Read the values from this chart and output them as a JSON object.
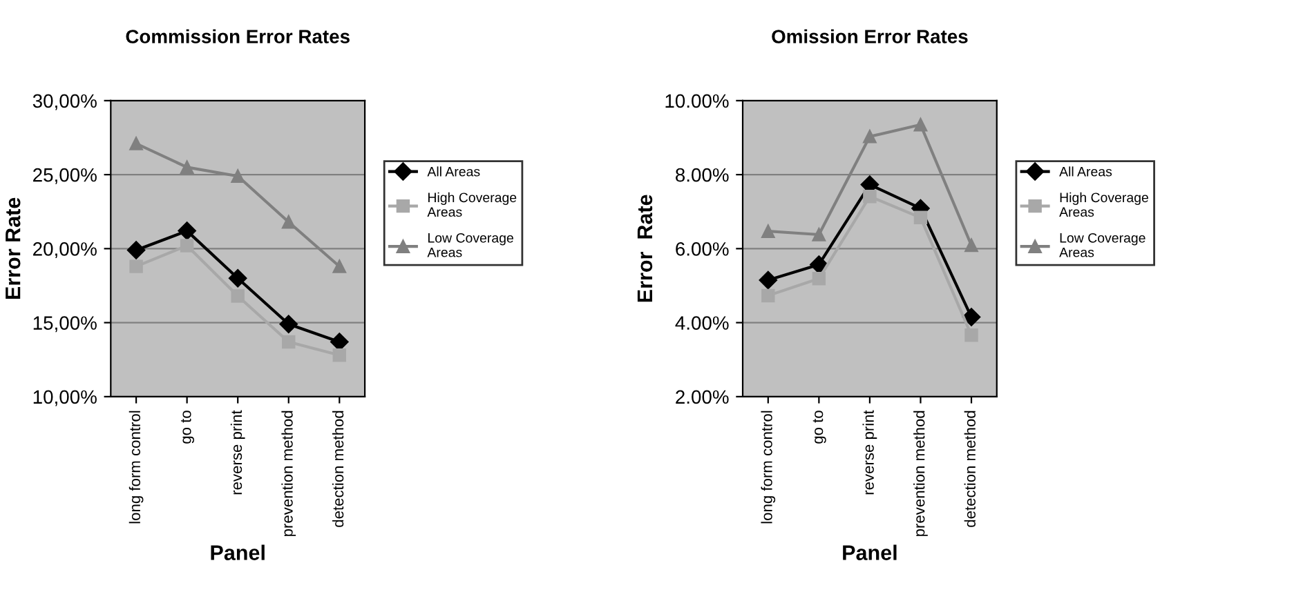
{
  "chart_data": [
    {
      "type": "line",
      "title": "Commission Error Rates",
      "xlabel": "Panel",
      "ylabel": "Error Rate",
      "categories": [
        "long form control",
        "go to",
        "reverse print",
        "prevention method",
        "detection method"
      ],
      "series": [
        {
          "name": "All Areas",
          "color": "#000000",
          "marker": "diamond",
          "values": [
            19.9,
            21.2,
            18.0,
            14.9,
            13.7
          ]
        },
        {
          "name": "High Coverage Areas",
          "color": "#a8a8a8",
          "marker": "square",
          "values": [
            18.8,
            20.2,
            16.8,
            13.7,
            12.8
          ]
        },
        {
          "name": "Low Coverage Areas",
          "color": "#808080",
          "marker": "triangle",
          "values": [
            27.1,
            25.5,
            24.9,
            21.8,
            18.8
          ]
        }
      ],
      "ylim": [
        10,
        30
      ],
      "yticks": [
        {
          "value": 10,
          "label": "10,00%"
        },
        {
          "value": 15,
          "label": "15,00%"
        },
        {
          "value": 20,
          "label": "20,00%"
        },
        {
          "value": 25,
          "label": "25,00%"
        },
        {
          "value": 30,
          "label": "30,00%"
        }
      ],
      "grid": "y",
      "legend": "right"
    },
    {
      "type": "line",
      "title": "Omission Error Rates",
      "xlabel": "Panel",
      "ylabel": "Error  Rate",
      "categories": [
        "long form control",
        "go to",
        "reverse print",
        "prevention method",
        "detection method"
      ],
      "series": [
        {
          "name": "All Areas",
          "color": "#000000",
          "marker": "diamond",
          "values": [
            5.15,
            5.57,
            7.73,
            7.09,
            4.15
          ]
        },
        {
          "name": "High Coverage Areas",
          "color": "#a8a8a8",
          "marker": "square",
          "values": [
            4.73,
            5.19,
            7.41,
            6.84,
            3.66
          ]
        },
        {
          "name": "Low Coverage Areas",
          "color": "#808080",
          "marker": "triangle",
          "values": [
            6.47,
            6.38,
            9.03,
            9.35,
            6.09
          ]
        }
      ],
      "ylim": [
        2,
        10
      ],
      "yticks": [
        {
          "value": 2,
          "label": "2.00%"
        },
        {
          "value": 4,
          "label": "4.00%"
        },
        {
          "value": 6,
          "label": "6.00%"
        },
        {
          "value": 8,
          "label": "8.00%"
        },
        {
          "value": 10,
          "label": "10.00%"
        }
      ],
      "grid": "y",
      "legend": "right"
    }
  ]
}
